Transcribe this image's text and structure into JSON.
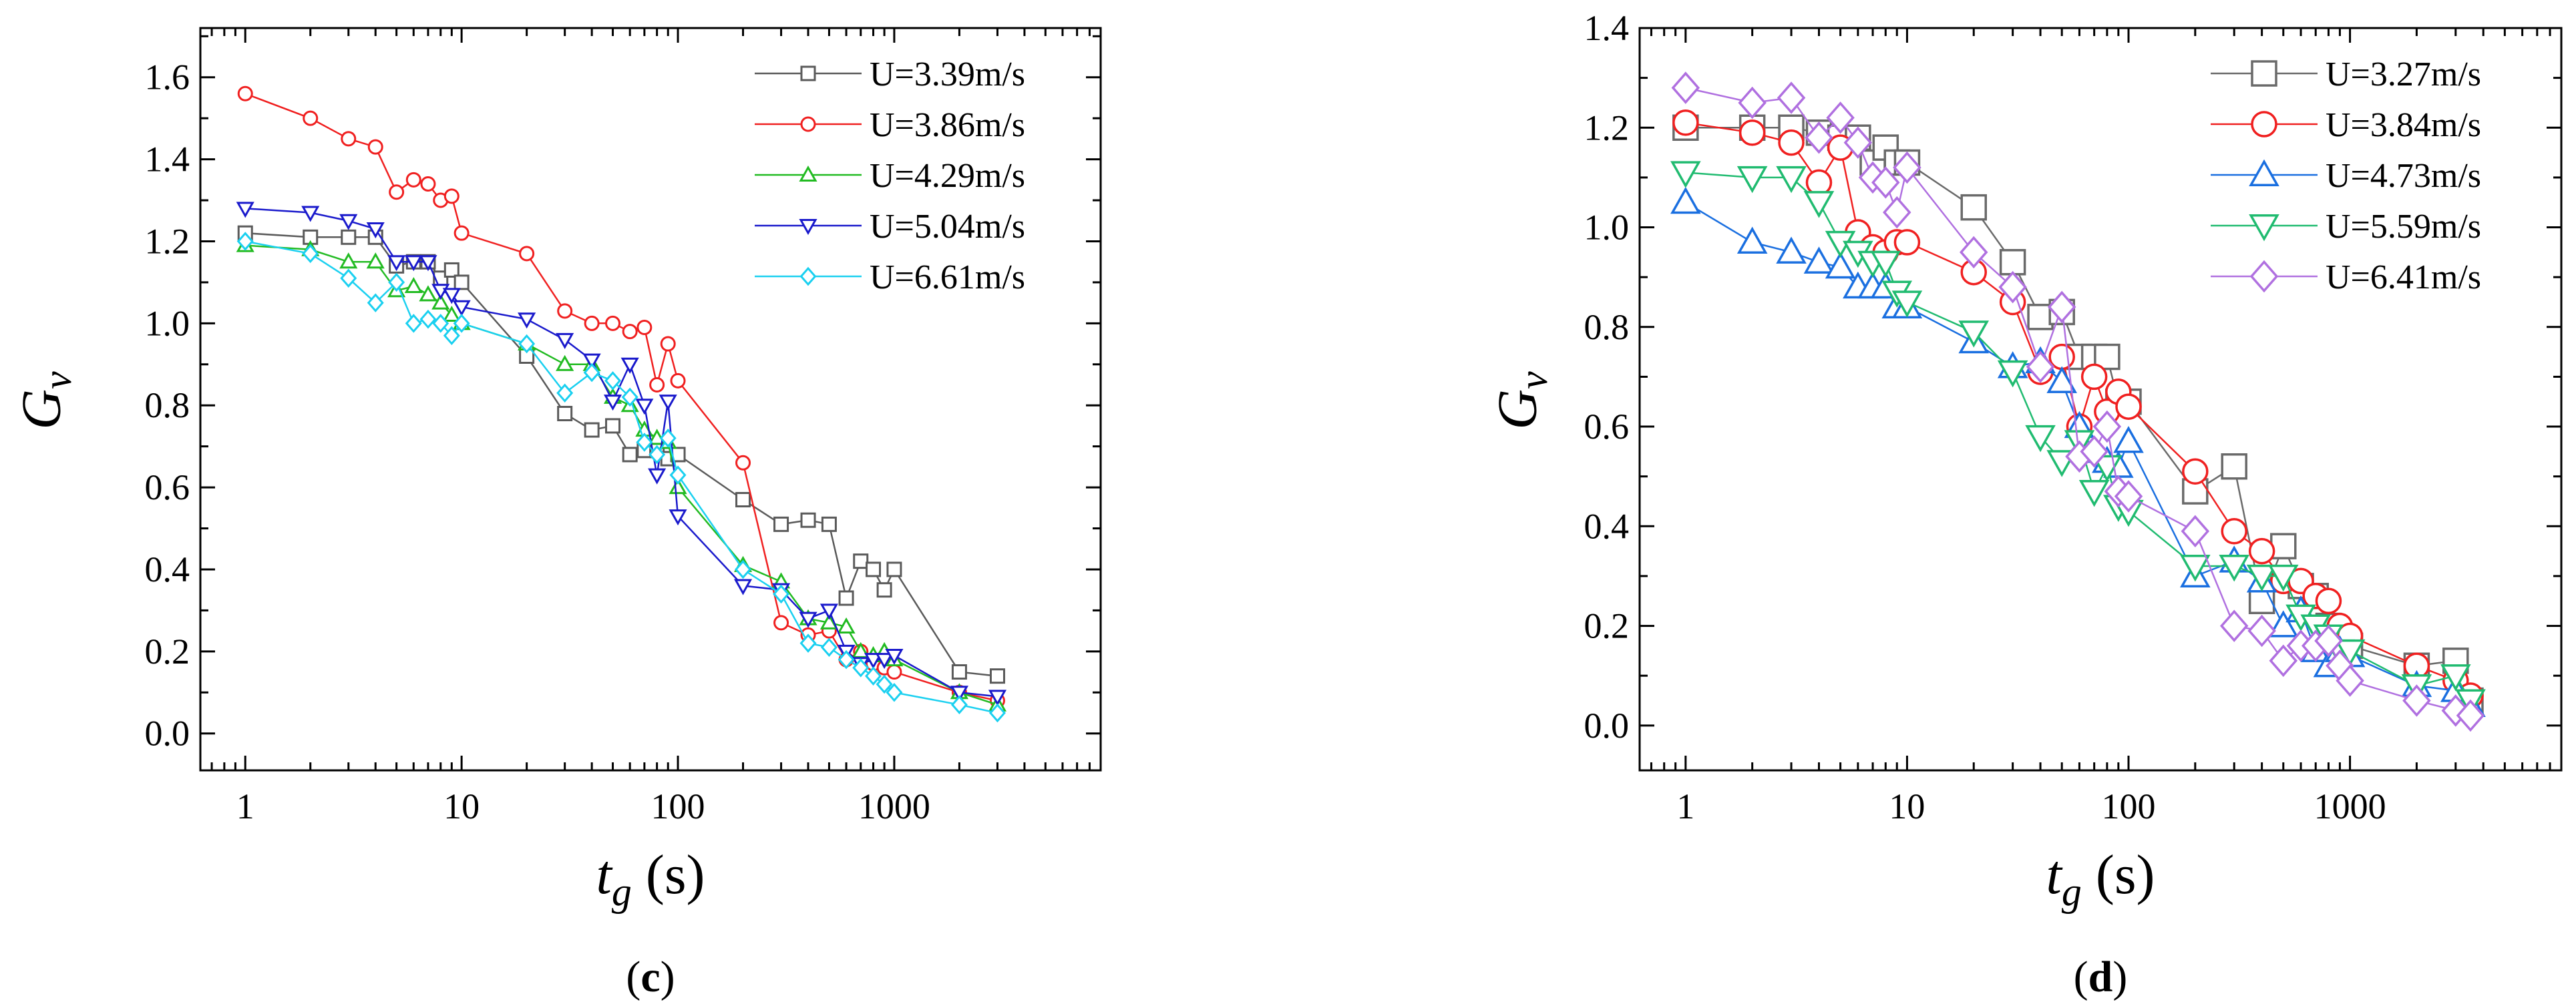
{
  "chart_data": [
    {
      "type": "line",
      "panel_label": {
        "open": "(",
        "letter": "c",
        "close": ")"
      },
      "xlabel": {
        "symbol": "t",
        "sub": "g",
        "unit": " (s)"
      },
      "ylabel": {
        "symbol": "G",
        "sub": "v"
      },
      "xscale": "log",
      "xlim": [
        0.62,
        9000
      ],
      "ylim": [
        -0.09,
        1.72
      ],
      "xticks": [
        1,
        10,
        100,
        1000
      ],
      "xtick_labels": [
        "1",
        "10",
        "100",
        "1000"
      ],
      "yticks": [
        0.0,
        0.2,
        0.4,
        0.6,
        0.8,
        1.0,
        1.2,
        1.4,
        1.6
      ],
      "ytick_labels": [
        "0.0",
        "0.2",
        "0.4",
        "0.6",
        "0.8",
        "1.0",
        "1.2",
        "1.4",
        "1.6"
      ],
      "legend_position": "top-right",
      "marker_size": "small",
      "series": [
        {
          "name": "U=3.39m/s",
          "color": "#5a5a5a",
          "marker": "square",
          "x": [
            1,
            2,
            3,
            4,
            5,
            6,
            7,
            8,
            9,
            10,
            20,
            30,
            40,
            50,
            60,
            70,
            80,
            90,
            100,
            200,
            300,
            400,
            500,
            600,
            700,
            800,
            900,
            1000,
            2000,
            3000
          ],
          "y": [
            1.22,
            1.21,
            1.21,
            1.21,
            1.14,
            1.15,
            1.15,
            1.11,
            1.13,
            1.1,
            0.92,
            0.78,
            0.74,
            0.75,
            0.68,
            0.69,
            0.69,
            0.67,
            0.68,
            0.57,
            0.51,
            0.52,
            0.51,
            0.33,
            0.42,
            0.4,
            0.35,
            0.4,
            0.15,
            0.14
          ]
        },
        {
          "name": "U=3.86m/s",
          "color": "#f02020",
          "marker": "circle",
          "x": [
            1,
            2,
            3,
            4,
            5,
            6,
            7,
            8,
            9,
            10,
            20,
            30,
            40,
            50,
            60,
            70,
            80,
            90,
            100,
            200,
            300,
            400,
            500,
            600,
            700,
            800,
            900,
            1000,
            2000,
            3000
          ],
          "y": [
            1.56,
            1.5,
            1.45,
            1.43,
            1.32,
            1.35,
            1.34,
            1.3,
            1.31,
            1.22,
            1.17,
            1.03,
            1.0,
            1.0,
            0.98,
            0.99,
            0.85,
            0.95,
            0.86,
            0.66,
            0.27,
            0.24,
            0.25,
            0.18,
            0.2,
            0.17,
            0.16,
            0.15,
            0.1,
            0.08
          ]
        },
        {
          "name": "U=4.29m/s",
          "color": "#22bb22",
          "marker": "triangle-up",
          "x": [
            1,
            2,
            3,
            4,
            5,
            6,
            7,
            8,
            9,
            10,
            20,
            30,
            40,
            50,
            60,
            70,
            80,
            90,
            100,
            200,
            300,
            400,
            500,
            600,
            700,
            800,
            900,
            1000,
            2000,
            3000
          ],
          "y": [
            1.19,
            1.18,
            1.15,
            1.15,
            1.08,
            1.09,
            1.07,
            1.05,
            1.02,
            1.0,
            0.95,
            0.9,
            0.9,
            0.82,
            0.8,
            0.74,
            0.72,
            0.71,
            0.6,
            0.41,
            0.37,
            0.28,
            0.27,
            0.26,
            0.2,
            0.19,
            0.2,
            0.18,
            0.1,
            0.07
          ]
        },
        {
          "name": "U=5.04m/s",
          "color": "#1a1acc",
          "marker": "triangle-down",
          "x": [
            1,
            2,
            3,
            4,
            5,
            6,
            7,
            8,
            9,
            10,
            20,
            30,
            40,
            50,
            60,
            70,
            80,
            90,
            100,
            200,
            300,
            400,
            500,
            600,
            700,
            800,
            900,
            1000,
            2000,
            3000
          ],
          "y": [
            1.28,
            1.27,
            1.25,
            1.23,
            1.15,
            1.15,
            1.15,
            1.08,
            1.07,
            1.04,
            1.01,
            0.96,
            0.91,
            0.81,
            0.9,
            0.8,
            0.63,
            0.81,
            0.53,
            0.36,
            0.35,
            0.28,
            0.3,
            0.2,
            0.17,
            0.18,
            0.18,
            0.19,
            0.1,
            0.09
          ]
        },
        {
          "name": "U=6.61m/s",
          "color": "#1ad0f0",
          "marker": "diamond",
          "x": [
            1,
            2,
            3,
            4,
            5,
            6,
            7,
            8,
            9,
            10,
            20,
            30,
            40,
            50,
            60,
            70,
            80,
            90,
            100,
            200,
            300,
            400,
            500,
            600,
            700,
            800,
            900,
            1000,
            2000,
            3000
          ],
          "y": [
            1.2,
            1.17,
            1.11,
            1.05,
            1.1,
            1.0,
            1.01,
            1.0,
            0.97,
            1.0,
            0.95,
            0.83,
            0.88,
            0.86,
            0.82,
            0.71,
            0.68,
            0.72,
            0.63,
            0.4,
            0.34,
            0.22,
            0.21,
            0.18,
            0.16,
            0.14,
            0.12,
            0.1,
            0.07,
            0.05
          ]
        }
      ]
    },
    {
      "type": "line",
      "panel_label": {
        "open": "(",
        "letter": "d",
        "close": ")"
      },
      "xlabel": {
        "symbol": "t",
        "sub": "g",
        "unit": " (s)"
      },
      "ylabel": {
        "symbol": "G",
        "sub": "v"
      },
      "xscale": "log",
      "xlim": [
        0.62,
        9000
      ],
      "ylim": [
        -0.09,
        1.4
      ],
      "xticks": [
        1,
        10,
        100,
        1000
      ],
      "xtick_labels": [
        "1",
        "10",
        "100",
        "1000"
      ],
      "yticks": [
        0.0,
        0.2,
        0.4,
        0.6,
        0.8,
        1.0,
        1.2,
        1.4
      ],
      "ytick_labels": [
        "0.0",
        "0.2",
        "0.4",
        "0.6",
        "0.8",
        "1.0",
        "1.2",
        "1.4"
      ],
      "legend_position": "top-right",
      "marker_size": "large",
      "series": [
        {
          "name": "U=3.27m/s",
          "color": "#6a6a6a",
          "marker": "square",
          "x": [
            1,
            2,
            3,
            4,
            5,
            6,
            7,
            8,
            9,
            10,
            20,
            30,
            40,
            50,
            60,
            70,
            80,
            90,
            100,
            200,
            300,
            400,
            500,
            600,
            700,
            800,
            900,
            1000,
            2000,
            3000,
            3500
          ],
          "y": [
            1.2,
            1.2,
            1.2,
            1.19,
            1.18,
            1.18,
            1.13,
            1.16,
            1.13,
            1.13,
            1.04,
            0.93,
            0.82,
            0.83,
            0.74,
            0.74,
            0.74,
            0.65,
            0.65,
            0.47,
            0.52,
            0.25,
            0.36,
            0.28,
            0.26,
            0.2,
            0.18,
            0.16,
            0.12,
            0.13,
            0.05
          ]
        },
        {
          "name": "U=3.84m/s",
          "color": "#f02020",
          "marker": "circle",
          "x": [
            1,
            2,
            3,
            4,
            5,
            6,
            7,
            8,
            9,
            10,
            20,
            30,
            40,
            50,
            60,
            70,
            80,
            90,
            100,
            200,
            300,
            400,
            500,
            600,
            700,
            800,
            900,
            1000,
            2000,
            3000,
            3500
          ],
          "y": [
            1.21,
            1.19,
            1.17,
            1.09,
            1.16,
            0.99,
            0.96,
            0.95,
            0.97,
            0.97,
            0.91,
            0.85,
            0.71,
            0.74,
            0.6,
            0.7,
            0.63,
            0.67,
            0.64,
            0.51,
            0.39,
            0.35,
            0.29,
            0.29,
            0.26,
            0.25,
            0.2,
            0.18,
            0.12,
            0.09,
            0.06
          ]
        },
        {
          "name": "U=4.73m/s",
          "color": "#1a6fe0",
          "marker": "triangle-up",
          "x": [
            1,
            2,
            3,
            4,
            5,
            6,
            7,
            8,
            9,
            10,
            20,
            30,
            40,
            50,
            60,
            70,
            80,
            90,
            100,
            200,
            300,
            400,
            500,
            600,
            700,
            800,
            900,
            1000,
            2000,
            3000,
            3500
          ],
          "y": [
            1.05,
            0.97,
            0.95,
            0.93,
            0.92,
            0.88,
            0.88,
            0.88,
            0.84,
            0.84,
            0.77,
            0.72,
            0.73,
            0.69,
            0.6,
            0.55,
            0.53,
            0.52,
            0.57,
            0.3,
            0.33,
            0.29,
            0.2,
            0.23,
            0.15,
            0.12,
            0.15,
            0.14,
            0.08,
            0.07,
            0.04
          ]
        },
        {
          "name": "U=5.59m/s",
          "color": "#20bb70",
          "marker": "triangle-down",
          "x": [
            1,
            2,
            3,
            4,
            5,
            6,
            7,
            8,
            9,
            10,
            20,
            30,
            40,
            50,
            60,
            70,
            80,
            90,
            100,
            200,
            300,
            400,
            500,
            600,
            700,
            800,
            900,
            1000,
            2000,
            3000,
            3500
          ],
          "y": [
            1.11,
            1.1,
            1.1,
            1.05,
            0.97,
            0.95,
            0.93,
            0.93,
            0.87,
            0.85,
            0.79,
            0.71,
            0.58,
            0.53,
            0.57,
            0.47,
            0.52,
            0.44,
            0.43,
            0.32,
            0.32,
            0.3,
            0.3,
            0.22,
            0.2,
            0.18,
            0.15,
            0.15,
            0.08,
            0.1,
            0.05
          ]
        },
        {
          "name": "U=6.41m/s",
          "color": "#b070e0",
          "marker": "diamond",
          "x": [
            1,
            2,
            3,
            4,
            5,
            6,
            7,
            8,
            9,
            10,
            20,
            30,
            40,
            50,
            60,
            70,
            80,
            90,
            100,
            200,
            300,
            400,
            500,
            600,
            700,
            800,
            900,
            1000,
            2000,
            3000,
            3500
          ],
          "y": [
            1.28,
            1.25,
            1.26,
            1.18,
            1.22,
            1.17,
            1.1,
            1.09,
            1.03,
            1.12,
            0.95,
            0.88,
            0.72,
            0.84,
            0.54,
            0.55,
            0.6,
            0.47,
            0.46,
            0.39,
            0.2,
            0.19,
            0.13,
            0.16,
            0.16,
            0.17,
            0.12,
            0.09,
            0.05,
            0.03,
            0.02
          ]
        }
      ]
    }
  ]
}
